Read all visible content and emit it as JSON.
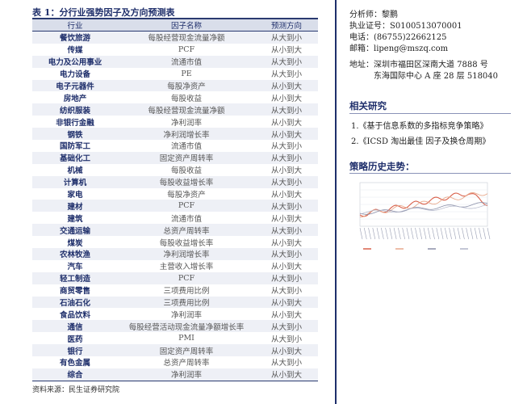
{
  "table": {
    "title": "表 1：分行业强势因子及方向预测表",
    "headers": [
      "行业",
      "因子名称",
      "预测方向"
    ],
    "rows": [
      [
        "餐饮旅游",
        "每股经营现金流量净额",
        "从大到小"
      ],
      [
        "传媒",
        "PCF",
        "从小到大"
      ],
      [
        "电力及公用事业",
        "流通市值",
        "从大到小"
      ],
      [
        "电力设备",
        "PE",
        "从大到小"
      ],
      [
        "电子元器件",
        "每股净资产",
        "从小到大"
      ],
      [
        "房地产",
        "每股收益",
        "从小到大"
      ],
      [
        "纺织服装",
        "每股经营现金流量净额",
        "从大到小"
      ],
      [
        "非银行金融",
        "净利润率",
        "从小到大"
      ],
      [
        "钢铁",
        "净利润增长率",
        "从小到大"
      ],
      [
        "国防军工",
        "流通市值",
        "从大到小"
      ],
      [
        "基础化工",
        "固定资产周转率",
        "从大到小"
      ],
      [
        "机械",
        "每股收益",
        "从小到大"
      ],
      [
        "计算机",
        "每股收益增长率",
        "从大到小"
      ],
      [
        "家电",
        "每股净资产",
        "从小到大"
      ],
      [
        "建材",
        "PCF",
        "从大到小"
      ],
      [
        "建筑",
        "流通市值",
        "从小到大"
      ],
      [
        "交通运输",
        "总资产周转率",
        "从大到小"
      ],
      [
        "煤炭",
        "每股收益增长率",
        "从小到大"
      ],
      [
        "农林牧渔",
        "净利润增长率",
        "从大到小"
      ],
      [
        "汽车",
        "主营收入增长率",
        "从小到大"
      ],
      [
        "轻工制造",
        "PCF",
        "从大到小"
      ],
      [
        "商贸零售",
        "三项费用比例",
        "从大到小"
      ],
      [
        "石油石化",
        "三项费用比例",
        "从小到大"
      ],
      [
        "食品饮料",
        "净利润率",
        "从小到大"
      ],
      [
        "通信",
        "每股经营活动现金流量净额增长率",
        "从大到小"
      ],
      [
        "医药",
        "PMI",
        "从大到小"
      ],
      [
        "银行",
        "固定资产周转率",
        "从小到大"
      ],
      [
        "有色金属",
        "总资产周转率",
        "从大到小"
      ],
      [
        "综合",
        "净利润率",
        "从小到大"
      ]
    ],
    "source": "资料来源：民生证券研究院",
    "cut_text": "资料来源：民生证券研究院"
  },
  "contact": {
    "analyst_label": "分析师：",
    "analyst_name": "黎鹏",
    "license_label": "执业证号：",
    "license": "S0100513070001",
    "phone_label": "电话：",
    "phone": "(86755)22662125",
    "email_label": "邮箱：",
    "email": "lipeng@mszq.com",
    "address_label": "地址：",
    "address_line1": "深圳市福田区深南大道 7888 号",
    "address_line2": "东海国际中心 A 座 28 层  518040"
  },
  "related": {
    "title": "相关研究",
    "items": [
      "1.《基于信息系数的多指标竞争策略》",
      "2.《ICSD 淘出最佳 因子及换仓周期》"
    ]
  },
  "strategy": {
    "title": "策略历史走势：",
    "colors": {
      "series1": "#d9604a",
      "series2": "#e8a98c",
      "series3": "#8a8fa8",
      "series4": "#b0b4c8"
    }
  },
  "colors": {
    "navy": "#1f2f6b",
    "header_bg": "#d9deea",
    "stripe": "#eef0f6"
  }
}
